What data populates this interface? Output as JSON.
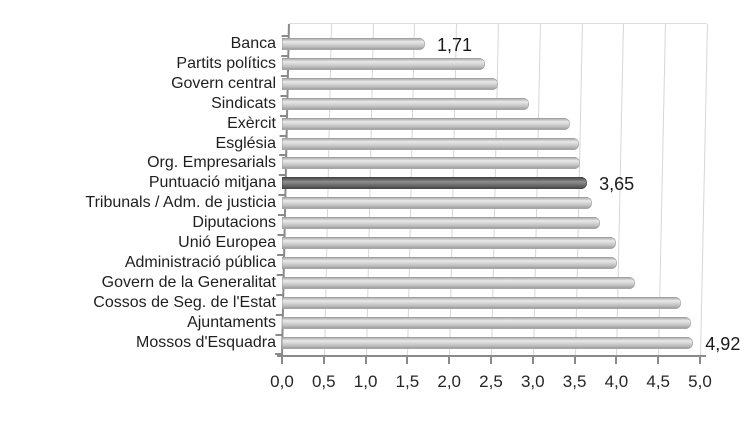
{
  "chart_data": {
    "type": "bar",
    "orientation": "horizontal",
    "title": "",
    "xlabel": "",
    "ylabel": "",
    "xlim": [
      0,
      5
    ],
    "grid": true,
    "x_tick_labels": [
      "0,0",
      "0,5",
      "1,0",
      "1,5",
      "2,0",
      "2,5",
      "3,0",
      "3,5",
      "4,0",
      "4,5",
      "5,0"
    ],
    "bars": [
      {
        "label": "Banca",
        "value": 1.71,
        "value_label": "1,71",
        "highlight": false
      },
      {
        "label": "Partits polítics",
        "value": 2.43,
        "value_label": "",
        "highlight": false
      },
      {
        "label": "Govern central",
        "value": 2.58,
        "value_label": "",
        "highlight": false
      },
      {
        "label": "Sindicats",
        "value": 2.96,
        "value_label": "",
        "highlight": false
      },
      {
        "label": "Exèrcit",
        "value": 3.44,
        "value_label": "",
        "highlight": false
      },
      {
        "label": "Església",
        "value": 3.55,
        "value_label": "",
        "highlight": false
      },
      {
        "label": "Org. Empresarials",
        "value": 3.57,
        "value_label": "",
        "highlight": false
      },
      {
        "label": "Puntuació mitjana",
        "value": 3.65,
        "value_label": "3,65",
        "highlight": true
      },
      {
        "label": "Tribunals / Adm. de justicia",
        "value": 3.71,
        "value_label": "",
        "highlight": false
      },
      {
        "label": "Diputacions",
        "value": 3.8,
        "value_label": "",
        "highlight": false
      },
      {
        "label": "Unió Europea",
        "value": 4.0,
        "value_label": "",
        "highlight": false
      },
      {
        "label": "Administració pública",
        "value": 4.01,
        "value_label": "",
        "highlight": false
      },
      {
        "label": "Govern de la Generalitat",
        "value": 4.22,
        "value_label": "",
        "highlight": false
      },
      {
        "label": "Cossos de Seg. de l'Estat",
        "value": 4.77,
        "value_label": "",
        "highlight": false
      },
      {
        "label": "Ajuntaments",
        "value": 4.89,
        "value_label": "",
        "highlight": false
      },
      {
        "label": "Mossos d'Esquadra",
        "value": 4.92,
        "value_label": "4,92",
        "highlight": false
      }
    ],
    "colors": {
      "bar_fill": "#c9c9c9",
      "highlight_fill": "#5f5f5f",
      "gridline": "#d6d6d6",
      "axis": "#8a8a8a",
      "text": "#1f1f1f",
      "background": "#ffffff"
    }
  }
}
